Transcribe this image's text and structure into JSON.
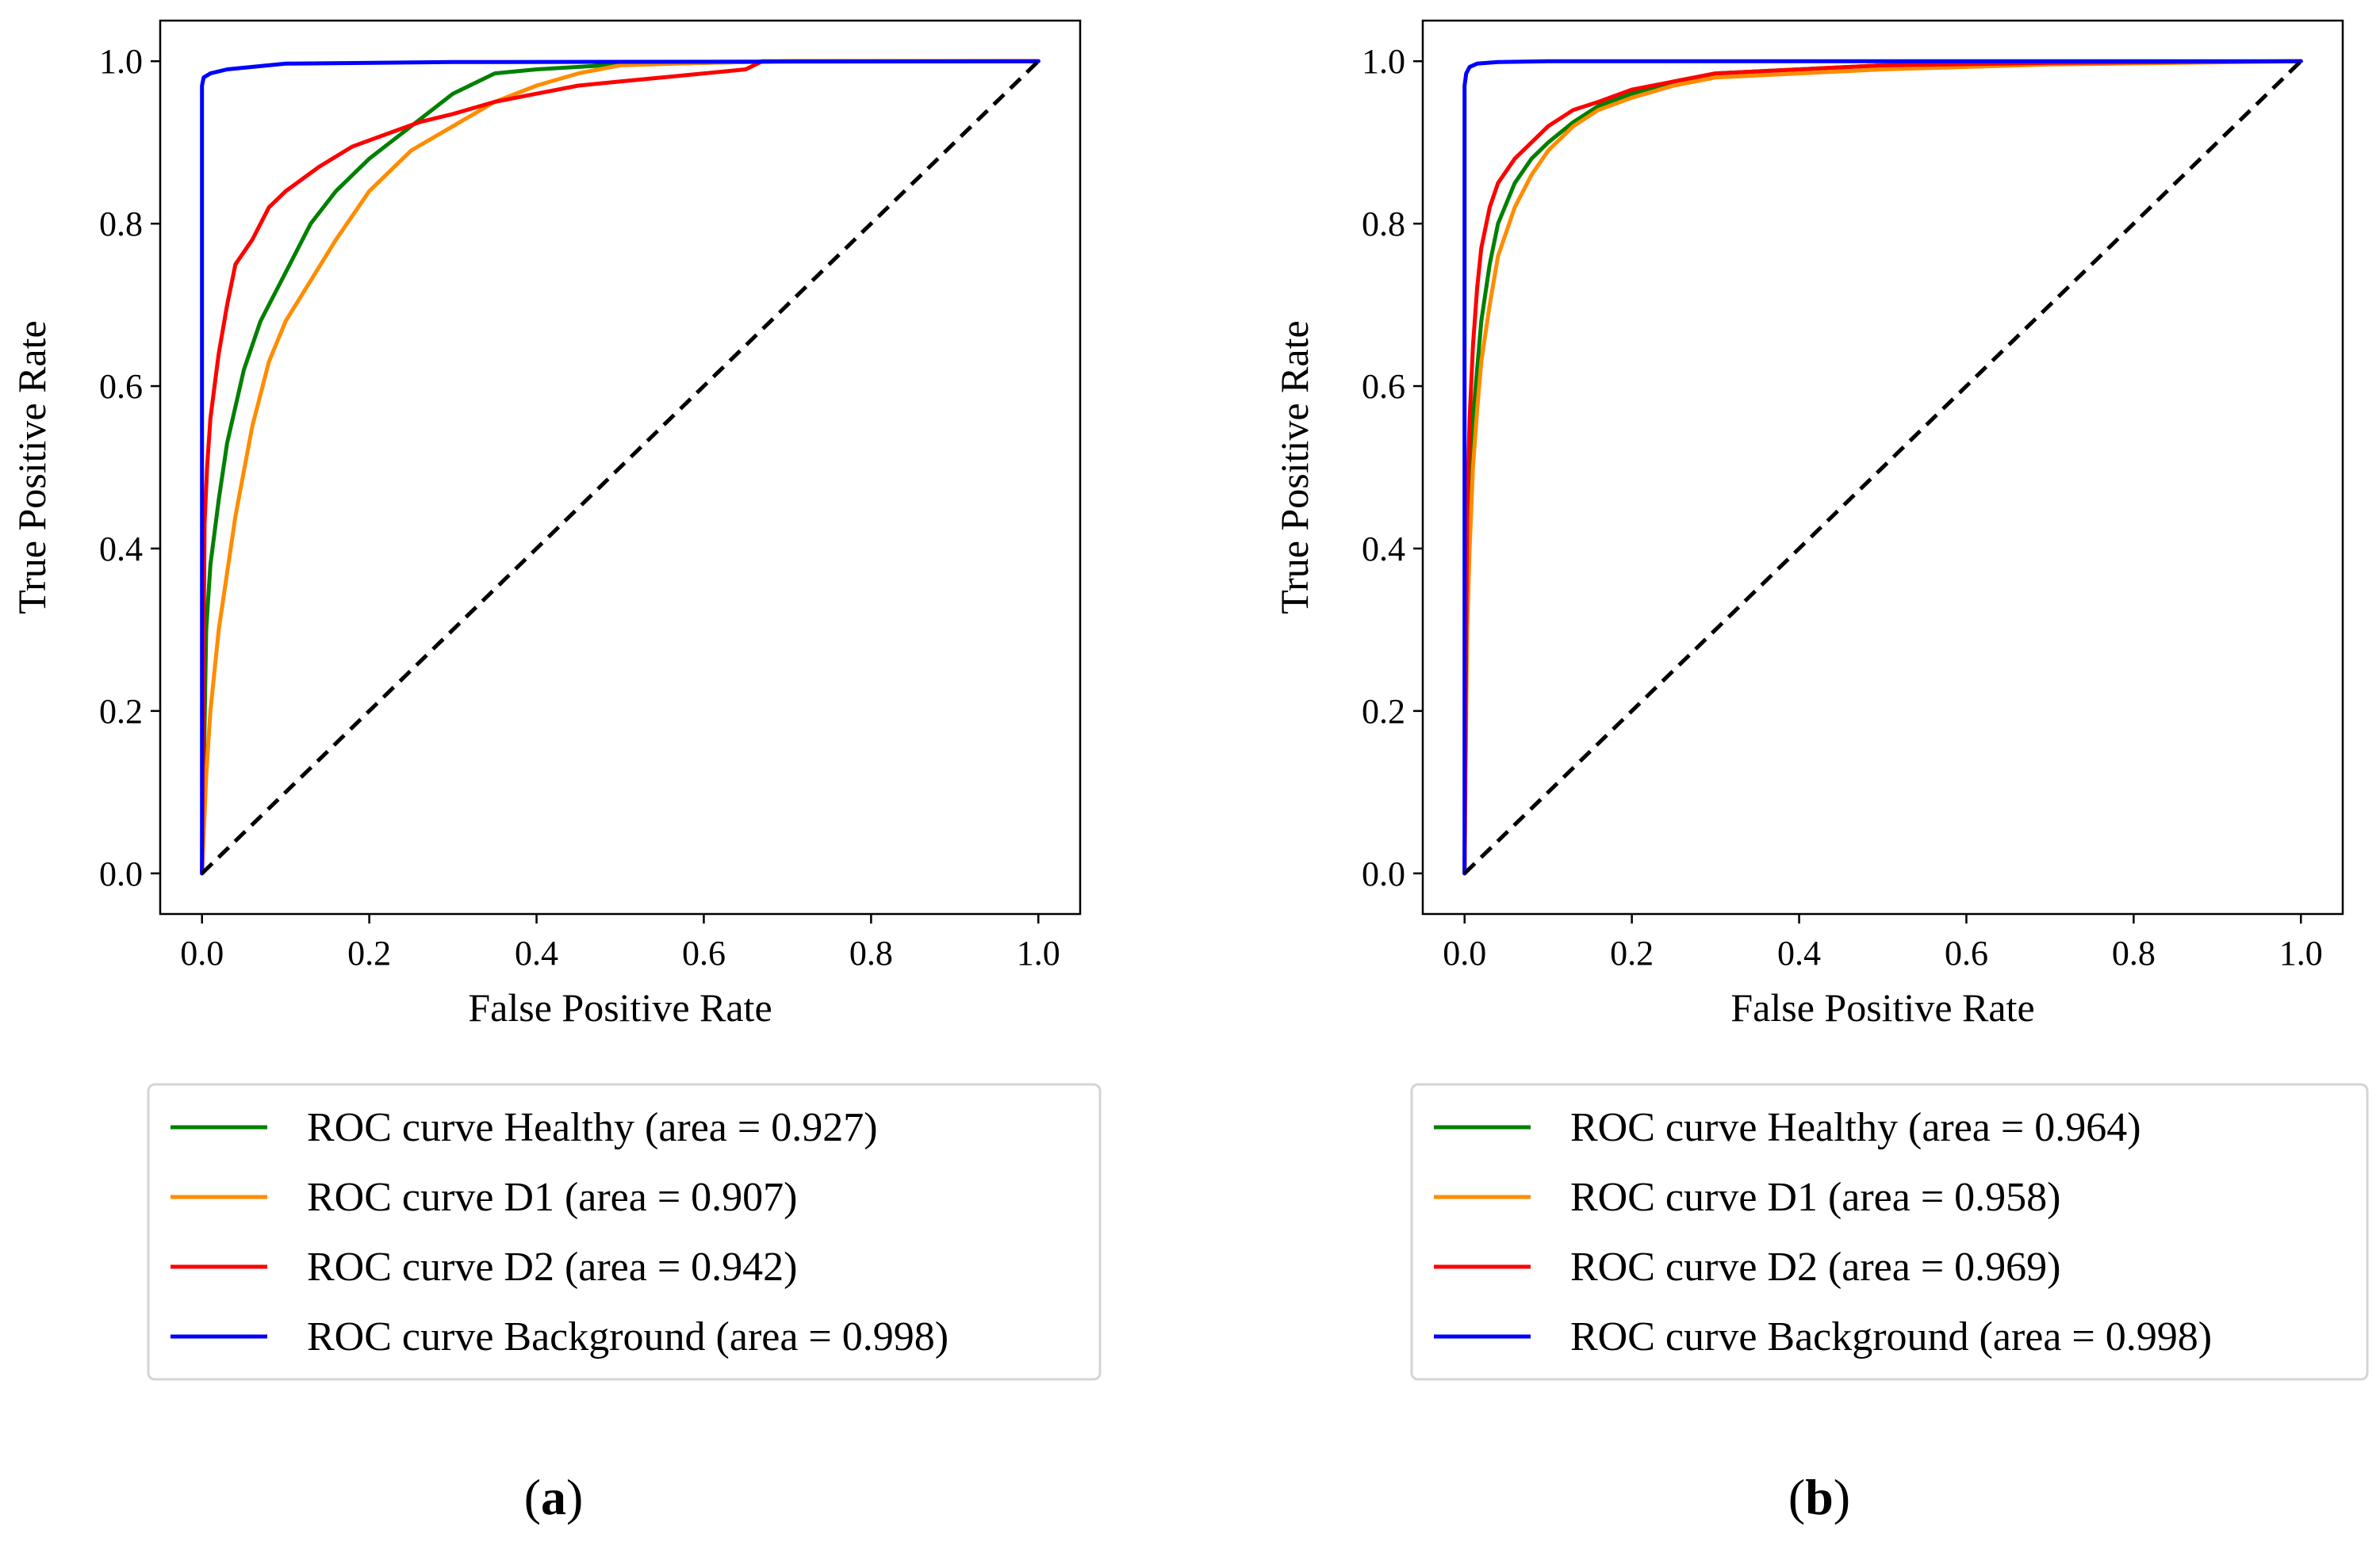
{
  "chart_data": [
    {
      "type": "line",
      "panel_label": "a",
      "xlabel": "False Positive Rate",
      "ylabel": "True Positive Rate",
      "xlim": [
        -0.05,
        1.05
      ],
      "ylim": [
        -0.05,
        1.05
      ],
      "xticks": [
        "0.0",
        "0.2",
        "0.4",
        "0.6",
        "0.8",
        "1.0"
      ],
      "yticks": [
        "0.0",
        "0.2",
        "0.4",
        "0.6",
        "0.8",
        "1.0"
      ],
      "legend_position": "below",
      "series": [
        {
          "name": "ROC curve Healthy (area = 0.927)",
          "color": "#008000",
          "x": [
            0,
            0.005,
            0.01,
            0.02,
            0.03,
            0.05,
            0.07,
            0.1,
            0.13,
            0.16,
            0.2,
            0.25,
            0.3,
            0.35,
            0.4,
            0.5,
            0.6,
            0.7,
            1.0
          ],
          "y": [
            0,
            0.3,
            0.38,
            0.46,
            0.53,
            0.62,
            0.68,
            0.74,
            0.8,
            0.84,
            0.88,
            0.92,
            0.96,
            0.985,
            0.99,
            0.996,
            0.998,
            1.0,
            1.0
          ]
        },
        {
          "name": "ROC curve D1 (area = 0.907)",
          "color": "#FF8C00",
          "x": [
            0,
            0.005,
            0.01,
            0.02,
            0.04,
            0.06,
            0.08,
            0.1,
            0.13,
            0.16,
            0.2,
            0.25,
            0.3,
            0.35,
            0.4,
            0.45,
            0.5,
            0.6,
            0.7,
            1.0
          ],
          "y": [
            0,
            0.12,
            0.2,
            0.3,
            0.44,
            0.55,
            0.63,
            0.68,
            0.73,
            0.78,
            0.84,
            0.89,
            0.92,
            0.95,
            0.97,
            0.985,
            0.995,
            0.998,
            1.0,
            1.0
          ]
        },
        {
          "name": "ROC curve D2 (area = 0.942)",
          "color": "#FF0000",
          "x": [
            0,
            0.003,
            0.006,
            0.01,
            0.015,
            0.02,
            0.03,
            0.04,
            0.06,
            0.08,
            0.1,
            0.14,
            0.18,
            0.22,
            0.26,
            0.3,
            0.35,
            0.4,
            0.45,
            0.5,
            0.55,
            0.6,
            0.65,
            0.67,
            0.7,
            1.0
          ],
          "y": [
            0,
            0.43,
            0.5,
            0.56,
            0.6,
            0.64,
            0.7,
            0.75,
            0.78,
            0.82,
            0.84,
            0.87,
            0.895,
            0.91,
            0.925,
            0.935,
            0.95,
            0.96,
            0.97,
            0.975,
            0.98,
            0.985,
            0.99,
            1.0,
            1.0,
            1.0
          ]
        },
        {
          "name": "ROC curve Background (area = 0.998)",
          "color": "#0000FF",
          "x": [
            0,
            0.0,
            0.002,
            0.01,
            0.03,
            0.1,
            0.3,
            1.0
          ],
          "y": [
            0,
            0.97,
            0.98,
            0.985,
            0.99,
            0.997,
            0.999,
            1.0
          ]
        },
        {
          "name": "chance",
          "color": "#000000",
          "dashed": true,
          "x": [
            0,
            1
          ],
          "y": [
            0,
            1
          ]
        }
      ]
    },
    {
      "type": "line",
      "panel_label": "b",
      "xlabel": "False Positive Rate",
      "ylabel": "True Positive Rate",
      "xlim": [
        -0.05,
        1.05
      ],
      "ylim": [
        -0.05,
        1.05
      ],
      "xticks": [
        "0.0",
        "0.2",
        "0.4",
        "0.6",
        "0.8",
        "1.0"
      ],
      "yticks": [
        "0.0",
        "0.2",
        "0.4",
        "0.6",
        "0.8",
        "1.0"
      ],
      "legend_position": "below",
      "series": [
        {
          "name": "ROC curve Healthy (area = 0.964)",
          "color": "#008000",
          "x": [
            0,
            0.003,
            0.006,
            0.01,
            0.015,
            0.02,
            0.03,
            0.04,
            0.06,
            0.08,
            0.1,
            0.13,
            0.16,
            0.2,
            0.25,
            0.3,
            0.4,
            0.5,
            0.7,
            1.0
          ],
          "y": [
            0,
            0.38,
            0.48,
            0.56,
            0.62,
            0.68,
            0.75,
            0.8,
            0.85,
            0.88,
            0.9,
            0.925,
            0.945,
            0.96,
            0.975,
            0.985,
            0.99,
            0.995,
            0.998,
            1.0
          ]
        },
        {
          "name": "ROC curve D1 (area = 0.958)",
          "color": "#FF8C00",
          "x": [
            0,
            0.003,
            0.006,
            0.01,
            0.015,
            0.02,
            0.03,
            0.04,
            0.06,
            0.08,
            0.1,
            0.13,
            0.16,
            0.2,
            0.25,
            0.3,
            0.4,
            0.5,
            0.7,
            1.0
          ],
          "y": [
            0,
            0.3,
            0.4,
            0.5,
            0.57,
            0.63,
            0.7,
            0.76,
            0.82,
            0.86,
            0.89,
            0.92,
            0.94,
            0.955,
            0.97,
            0.98,
            0.985,
            0.99,
            0.996,
            1.0
          ]
        },
        {
          "name": "ROC curve D2 (area = 0.969)",
          "color": "#FF0000",
          "x": [
            0,
            0.003,
            0.006,
            0.01,
            0.015,
            0.02,
            0.03,
            0.04,
            0.06,
            0.08,
            0.1,
            0.13,
            0.16,
            0.2,
            0.25,
            0.3,
            0.4,
            0.5,
            0.7,
            1.0
          ],
          "y": [
            0,
            0.45,
            0.56,
            0.65,
            0.72,
            0.77,
            0.82,
            0.85,
            0.88,
            0.9,
            0.92,
            0.94,
            0.95,
            0.965,
            0.975,
            0.985,
            0.99,
            0.995,
            0.998,
            1.0
          ]
        },
        {
          "name": "ROC curve Background (area = 0.998)",
          "color": "#0000FF",
          "x": [
            0,
            0.0,
            0.002,
            0.006,
            0.015,
            0.04,
            0.1,
            1.0
          ],
          "y": [
            0,
            0.97,
            0.985,
            0.993,
            0.997,
            0.999,
            1.0,
            1.0
          ]
        },
        {
          "name": "chance",
          "color": "#000000",
          "dashed": true,
          "x": [
            0,
            1
          ],
          "y": [
            0,
            1
          ]
        }
      ]
    }
  ]
}
